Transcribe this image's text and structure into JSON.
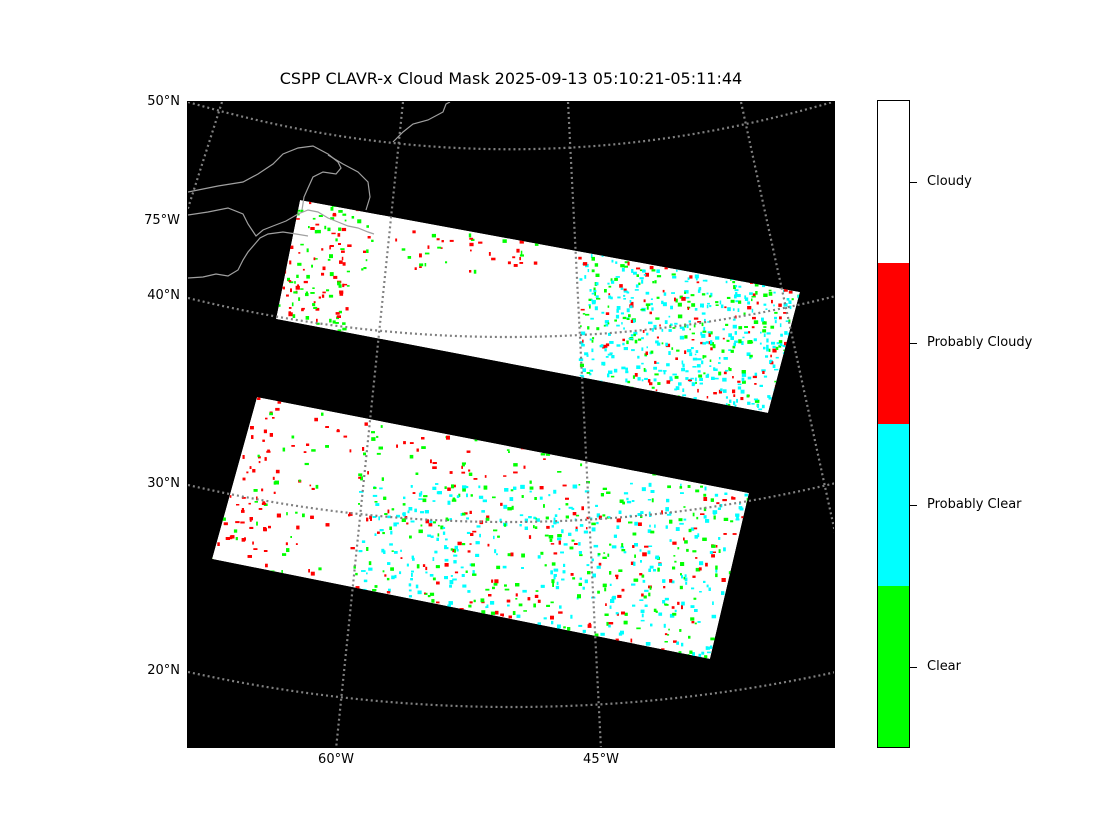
{
  "title": "CSPP CLAVR-x Cloud Mask 2025-09-13 05:10:21-05:11:44",
  "map": {
    "lat_labels": [
      "50°N",
      "75°W",
      "40°N",
      "30°N",
      "20°N"
    ],
    "lon_labels": [
      "60°W",
      "45°W"
    ],
    "background_color": "#000000",
    "graticule_color": "#808080",
    "coastline_color": "#a0a0a0"
  },
  "colorbar": {
    "classes": [
      {
        "label": "Cloudy",
        "color": "#ffffff"
      },
      {
        "label": "Probably Cloudy",
        "color": "#ff0000"
      },
      {
        "label": "Probably Clear",
        "color": "#00ffff"
      },
      {
        "label": "Clear",
        "color": "#00ff00"
      }
    ]
  }
}
